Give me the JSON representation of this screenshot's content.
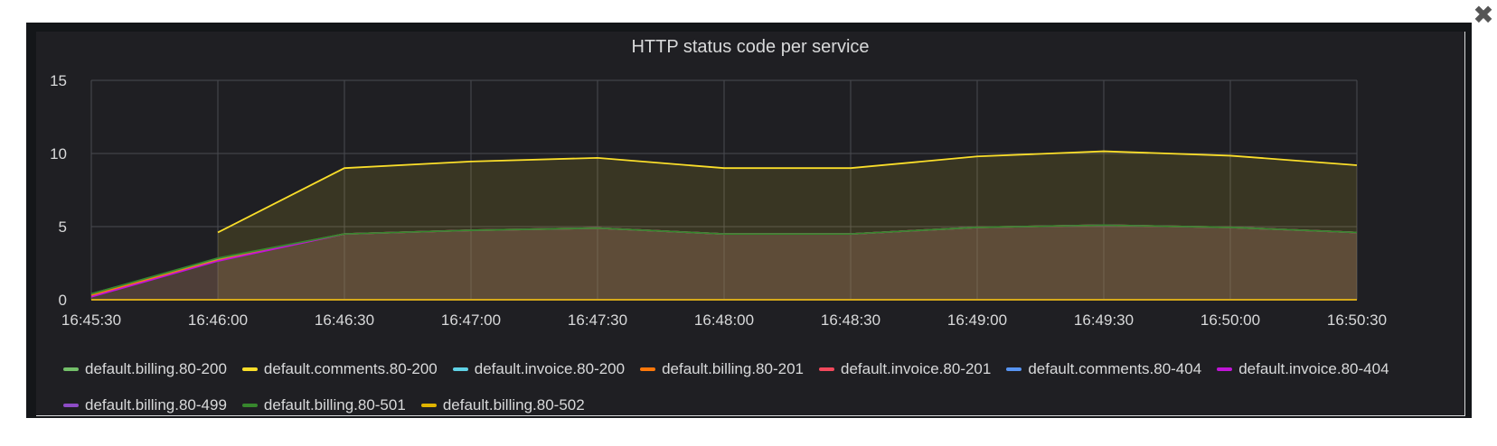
{
  "close_icon": "close-icon",
  "panel": {
    "title": "HTTP status code per service"
  },
  "colors": {
    "background": "#1f1f23",
    "grid": "#4a4b50",
    "text": "#d8d9da"
  },
  "chart_data": {
    "type": "area",
    "title": "HTTP status code per service",
    "xlabel": "",
    "ylabel": "",
    "ylim": [
      0,
      15
    ],
    "yticks": [
      "0",
      "5",
      "10",
      "15"
    ],
    "xticks": [
      "16:45:30",
      "16:46:00",
      "16:46:30",
      "16:47:00",
      "16:47:30",
      "16:48:00",
      "16:48:30",
      "16:49:00",
      "16:49:30",
      "16:50:00",
      "16:50:30"
    ],
    "grid": true,
    "legend_position": "bottom",
    "series": [
      {
        "name": "default.billing.80-200",
        "color": "#73bf69",
        "values": [
          0.4,
          2.8,
          4.5,
          4.75,
          4.9,
          4.5,
          4.5,
          4.95,
          5.1,
          4.95,
          4.6
        ]
      },
      {
        "name": "default.comments.80-200",
        "color": "#fade2a",
        "values": [
          null,
          4.6,
          9.0,
          9.45,
          9.7,
          9.0,
          9.0,
          9.8,
          10.15,
          9.85,
          9.2
        ]
      },
      {
        "name": "default.invoice.80-200",
        "color": "#5fd2e6",
        "values": [
          0,
          0,
          0,
          0,
          0,
          0,
          0,
          0,
          0,
          0,
          0
        ]
      },
      {
        "name": "default.billing.80-201",
        "color": "#ff780a",
        "values": [
          0.3,
          2.7,
          4.5,
          4.75,
          4.9,
          4.5,
          4.5,
          4.95,
          5.1,
          4.95,
          4.6
        ]
      },
      {
        "name": "default.invoice.80-201",
        "color": "#f2495c",
        "values": [
          0,
          0,
          0,
          0,
          0,
          0,
          0,
          0,
          0,
          0,
          0
        ]
      },
      {
        "name": "default.comments.80-404",
        "color": "#5794f2",
        "values": [
          0,
          0,
          0,
          0,
          0,
          0,
          0,
          0,
          0,
          0,
          0
        ]
      },
      {
        "name": "default.invoice.80-404",
        "color": "#c015d7",
        "values": [
          0.2,
          2.65,
          4.5,
          4.75,
          4.9,
          4.5,
          4.5,
          4.95,
          5.1,
          4.95,
          4.6
        ]
      },
      {
        "name": "default.billing.80-499",
        "color": "#8e4cc6",
        "values": [
          0,
          0,
          0,
          0,
          0,
          0,
          0,
          0,
          0,
          0,
          0
        ]
      },
      {
        "name": "default.billing.80-501",
        "color": "#37872d",
        "values": [
          0.4,
          2.85,
          4.5,
          4.75,
          4.9,
          4.5,
          4.5,
          4.95,
          5.1,
          4.95,
          4.6
        ]
      },
      {
        "name": "default.billing.80-502",
        "color": "#e0b400",
        "values": [
          0,
          0,
          0,
          0,
          0,
          0,
          0,
          0,
          0,
          0,
          0
        ]
      }
    ]
  }
}
